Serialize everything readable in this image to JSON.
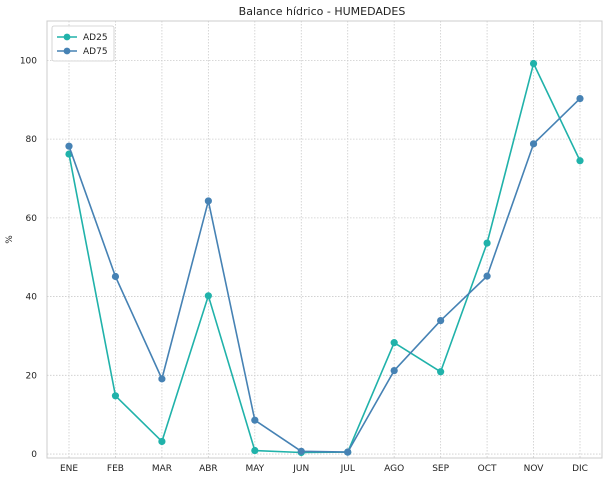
{
  "chart_data": {
    "type": "line",
    "title": "Balance hídrico - HUMEDADES",
    "xlabel": "",
    "ylabel": "%",
    "categories": [
      "ENE",
      "FEB",
      "MAR",
      "ABR",
      "MAY",
      "JUN",
      "JUL",
      "AGO",
      "SEP",
      "OCT",
      "NOV",
      "DIC"
    ],
    "ylim": [
      -1,
      110
    ],
    "yticks": [
      0,
      20,
      40,
      60,
      80,
      100
    ],
    "grid": true,
    "legend_position": "top-left",
    "series": [
      {
        "name": "AD25",
        "color": "#20b2aa",
        "marker": "circle",
        "values": [
          76.2,
          14.8,
          3.2,
          40.2,
          0.9,
          0.4,
          0.5,
          28.3,
          20.9,
          53.6,
          99.2,
          74.5
        ]
      },
      {
        "name": "AD75",
        "color": "#4682b4",
        "marker": "circle",
        "values": [
          78.2,
          45.1,
          19.1,
          64.3,
          8.6,
          0.7,
          0.5,
          21.2,
          33.9,
          45.2,
          78.8,
          90.3
        ]
      }
    ]
  }
}
